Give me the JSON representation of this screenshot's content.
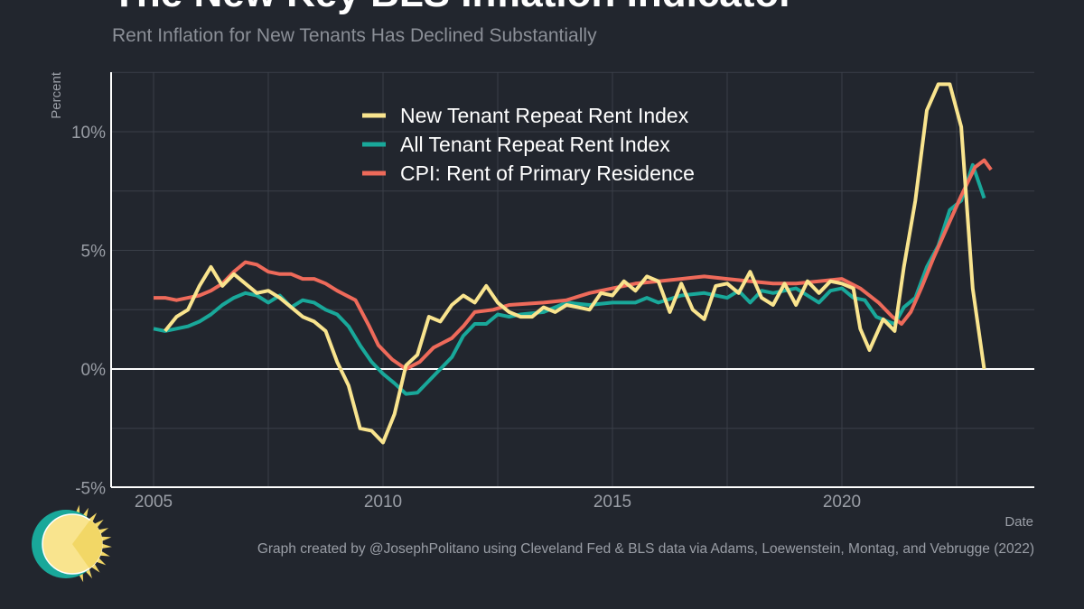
{
  "title": "The New Key BLS Inflation Indicator",
  "subtitle": "Rent Inflation for New Tenants Has Declined Substantially",
  "credit": "Graph created by @JosephPolitano using Cleveland Fed & BLS data via Adams, Loewenstein, Montag, and Vebrugge (2022)",
  "chart_data": {
    "type": "line",
    "title": "The New Key BLS Inflation Indicator",
    "subtitle": "Rent Inflation for New Tenants Has Declined Substantially",
    "xlabel": "Date",
    "ylabel": "Percent",
    "xlim": [
      2004.1,
      2023.9
    ],
    "ylim": [
      -5,
      12.5
    ],
    "xticks": [
      2005,
      2010,
      2015,
      2020
    ],
    "xtick_labels": [
      "2005",
      "2010",
      "2015",
      "2020"
    ],
    "yticks": [
      -5,
      0,
      5,
      10
    ],
    "ytick_labels": [
      "-5%",
      "0%",
      "5%",
      "10%"
    ],
    "grid": true,
    "legend_position": "top-center",
    "series": [
      {
        "name": "New Tenant Repeat Rent Index",
        "color": "#f9e48e",
        "points": [
          [
            2005.25,
            1.6
          ],
          [
            2005.5,
            2.2
          ],
          [
            2005.75,
            2.5
          ],
          [
            2006.0,
            3.5
          ],
          [
            2006.25,
            4.3
          ],
          [
            2006.5,
            3.5
          ],
          [
            2006.75,
            4.0
          ],
          [
            2007.0,
            3.6
          ],
          [
            2007.25,
            3.2
          ],
          [
            2007.5,
            3.3
          ],
          [
            2007.75,
            3.0
          ],
          [
            2008.0,
            2.6
          ],
          [
            2008.25,
            2.2
          ],
          [
            2008.5,
            2.0
          ],
          [
            2008.75,
            1.6
          ],
          [
            2009.0,
            0.3
          ],
          [
            2009.25,
            -0.7
          ],
          [
            2009.5,
            -2.5
          ],
          [
            2009.75,
            -2.6
          ],
          [
            2010.0,
            -3.1
          ],
          [
            2010.25,
            -1.9
          ],
          [
            2010.5,
            0.15
          ],
          [
            2010.75,
            0.6
          ],
          [
            2011.0,
            2.2
          ],
          [
            2011.25,
            2.0
          ],
          [
            2011.5,
            2.7
          ],
          [
            2011.75,
            3.1
          ],
          [
            2012.0,
            2.8
          ],
          [
            2012.25,
            3.5
          ],
          [
            2012.5,
            2.8
          ],
          [
            2012.75,
            2.4
          ],
          [
            2013.0,
            2.2
          ],
          [
            2013.25,
            2.2
          ],
          [
            2013.5,
            2.6
          ],
          [
            2013.75,
            2.4
          ],
          [
            2014.0,
            2.7
          ],
          [
            2014.25,
            2.6
          ],
          [
            2014.5,
            2.5
          ],
          [
            2014.75,
            3.2
          ],
          [
            2015.0,
            3.1
          ],
          [
            2015.25,
            3.7
          ],
          [
            2015.5,
            3.3
          ],
          [
            2015.75,
            3.9
          ],
          [
            2016.0,
            3.7
          ],
          [
            2016.25,
            2.4
          ],
          [
            2016.5,
            3.6
          ],
          [
            2016.75,
            2.5
          ],
          [
            2017.0,
            2.1
          ],
          [
            2017.25,
            3.5
          ],
          [
            2017.5,
            3.6
          ],
          [
            2017.75,
            3.2
          ],
          [
            2018.0,
            4.1
          ],
          [
            2018.25,
            3.0
          ],
          [
            2018.5,
            2.7
          ],
          [
            2018.75,
            3.6
          ],
          [
            2019.0,
            2.7
          ],
          [
            2019.25,
            3.7
          ],
          [
            2019.5,
            3.2
          ],
          [
            2019.75,
            3.7
          ],
          [
            2020.0,
            3.6
          ],
          [
            2020.25,
            3.4
          ],
          [
            2020.4,
            1.7
          ],
          [
            2020.6,
            0.8
          ],
          [
            2020.9,
            2.1
          ],
          [
            2021.15,
            1.6
          ],
          [
            2021.35,
            4.3
          ],
          [
            2021.6,
            7.1
          ],
          [
            2021.85,
            10.9
          ],
          [
            2022.1,
            12.0
          ],
          [
            2022.35,
            12.0
          ],
          [
            2022.6,
            10.2
          ],
          [
            2022.85,
            3.4
          ],
          [
            2023.1,
            0.0
          ]
        ]
      },
      {
        "name": "All Tenant Repeat Rent Index",
        "color": "#19a89a",
        "points": [
          [
            2005.0,
            1.7
          ],
          [
            2005.25,
            1.6
          ],
          [
            2005.5,
            1.7
          ],
          [
            2005.75,
            1.8
          ],
          [
            2006.0,
            2.0
          ],
          [
            2006.25,
            2.3
          ],
          [
            2006.5,
            2.7
          ],
          [
            2006.75,
            3.0
          ],
          [
            2007.0,
            3.2
          ],
          [
            2007.25,
            3.1
          ],
          [
            2007.5,
            2.8
          ],
          [
            2007.75,
            3.1
          ],
          [
            2008.0,
            2.6
          ],
          [
            2008.25,
            2.9
          ],
          [
            2008.5,
            2.8
          ],
          [
            2008.75,
            2.5
          ],
          [
            2009.0,
            2.3
          ],
          [
            2009.25,
            1.8
          ],
          [
            2009.5,
            1.0
          ],
          [
            2009.75,
            0.3
          ],
          [
            2010.0,
            -0.2
          ],
          [
            2010.25,
            -0.6
          ],
          [
            2010.5,
            -1.05
          ],
          [
            2010.75,
            -1.0
          ],
          [
            2011.0,
            -0.5
          ],
          [
            2011.25,
            0.0
          ],
          [
            2011.5,
            0.5
          ],
          [
            2011.75,
            1.4
          ],
          [
            2012.0,
            1.9
          ],
          [
            2012.25,
            1.9
          ],
          [
            2012.5,
            2.3
          ],
          [
            2012.75,
            2.2
          ],
          [
            2013.0,
            2.3
          ],
          [
            2013.5,
            2.4
          ],
          [
            2014.0,
            2.8
          ],
          [
            2014.5,
            2.7
          ],
          [
            2015.0,
            2.8
          ],
          [
            2015.5,
            2.8
          ],
          [
            2015.75,
            3.0
          ],
          [
            2016.0,
            2.8
          ],
          [
            2016.5,
            3.1
          ],
          [
            2017.0,
            3.2
          ],
          [
            2017.5,
            3.0
          ],
          [
            2017.75,
            3.3
          ],
          [
            2018.0,
            2.8
          ],
          [
            2018.25,
            3.3
          ],
          [
            2018.5,
            3.2
          ],
          [
            2019.0,
            3.4
          ],
          [
            2019.5,
            2.8
          ],
          [
            2019.75,
            3.3
          ],
          [
            2020.0,
            3.4
          ],
          [
            2020.25,
            3.0
          ],
          [
            2020.5,
            2.9
          ],
          [
            2020.75,
            2.2
          ],
          [
            2021.0,
            2.0
          ],
          [
            2021.15,
            1.9
          ],
          [
            2021.35,
            2.6
          ],
          [
            2021.6,
            3.0
          ],
          [
            2021.85,
            4.3
          ],
          [
            2022.1,
            5.2
          ],
          [
            2022.35,
            6.7
          ],
          [
            2022.6,
            7.1
          ],
          [
            2022.85,
            8.6
          ],
          [
            2023.1,
            7.2
          ]
        ]
      },
      {
        "name": "CPI: Rent of Primary Residence",
        "color": "#ee6a5a",
        "points": [
          [
            2005.0,
            3.0
          ],
          [
            2005.25,
            3.0
          ],
          [
            2005.5,
            2.9
          ],
          [
            2005.75,
            3.0
          ],
          [
            2006.0,
            3.1
          ],
          [
            2006.25,
            3.3
          ],
          [
            2006.5,
            3.6
          ],
          [
            2006.75,
            4.1
          ],
          [
            2007.0,
            4.5
          ],
          [
            2007.25,
            4.4
          ],
          [
            2007.5,
            4.1
          ],
          [
            2007.75,
            4.0
          ],
          [
            2008.0,
            4.0
          ],
          [
            2008.25,
            3.8
          ],
          [
            2008.5,
            3.8
          ],
          [
            2008.75,
            3.6
          ],
          [
            2009.0,
            3.3
          ],
          [
            2009.4,
            2.9
          ],
          [
            2009.7,
            1.8
          ],
          [
            2009.9,
            1.0
          ],
          [
            2010.2,
            0.4
          ],
          [
            2010.5,
            0.0
          ],
          [
            2010.8,
            0.3
          ],
          [
            2011.1,
            0.9
          ],
          [
            2011.5,
            1.3
          ],
          [
            2011.75,
            1.8
          ],
          [
            2012.0,
            2.4
          ],
          [
            2012.4,
            2.5
          ],
          [
            2012.75,
            2.7
          ],
          [
            2013.5,
            2.8
          ],
          [
            2014.0,
            2.9
          ],
          [
            2014.5,
            3.2
          ],
          [
            2015.0,
            3.4
          ],
          [
            2015.5,
            3.6
          ],
          [
            2016.0,
            3.7
          ],
          [
            2016.5,
            3.8
          ],
          [
            2017.0,
            3.9
          ],
          [
            2017.5,
            3.8
          ],
          [
            2018.0,
            3.7
          ],
          [
            2018.5,
            3.6
          ],
          [
            2019.0,
            3.6
          ],
          [
            2019.5,
            3.7
          ],
          [
            2020.0,
            3.8
          ],
          [
            2020.4,
            3.4
          ],
          [
            2020.8,
            2.8
          ],
          [
            2021.1,
            2.2
          ],
          [
            2021.3,
            1.9
          ],
          [
            2021.5,
            2.4
          ],
          [
            2021.75,
            3.5
          ],
          [
            2022.0,
            4.7
          ],
          [
            2022.3,
            6.0
          ],
          [
            2022.6,
            7.3
          ],
          [
            2022.9,
            8.5
          ],
          [
            2023.1,
            8.8
          ],
          [
            2023.25,
            8.4
          ]
        ]
      }
    ]
  },
  "logo": {
    "name": "sun-logo",
    "colors": [
      "#f9e48e",
      "#f2d766",
      "#19a89a"
    ]
  }
}
